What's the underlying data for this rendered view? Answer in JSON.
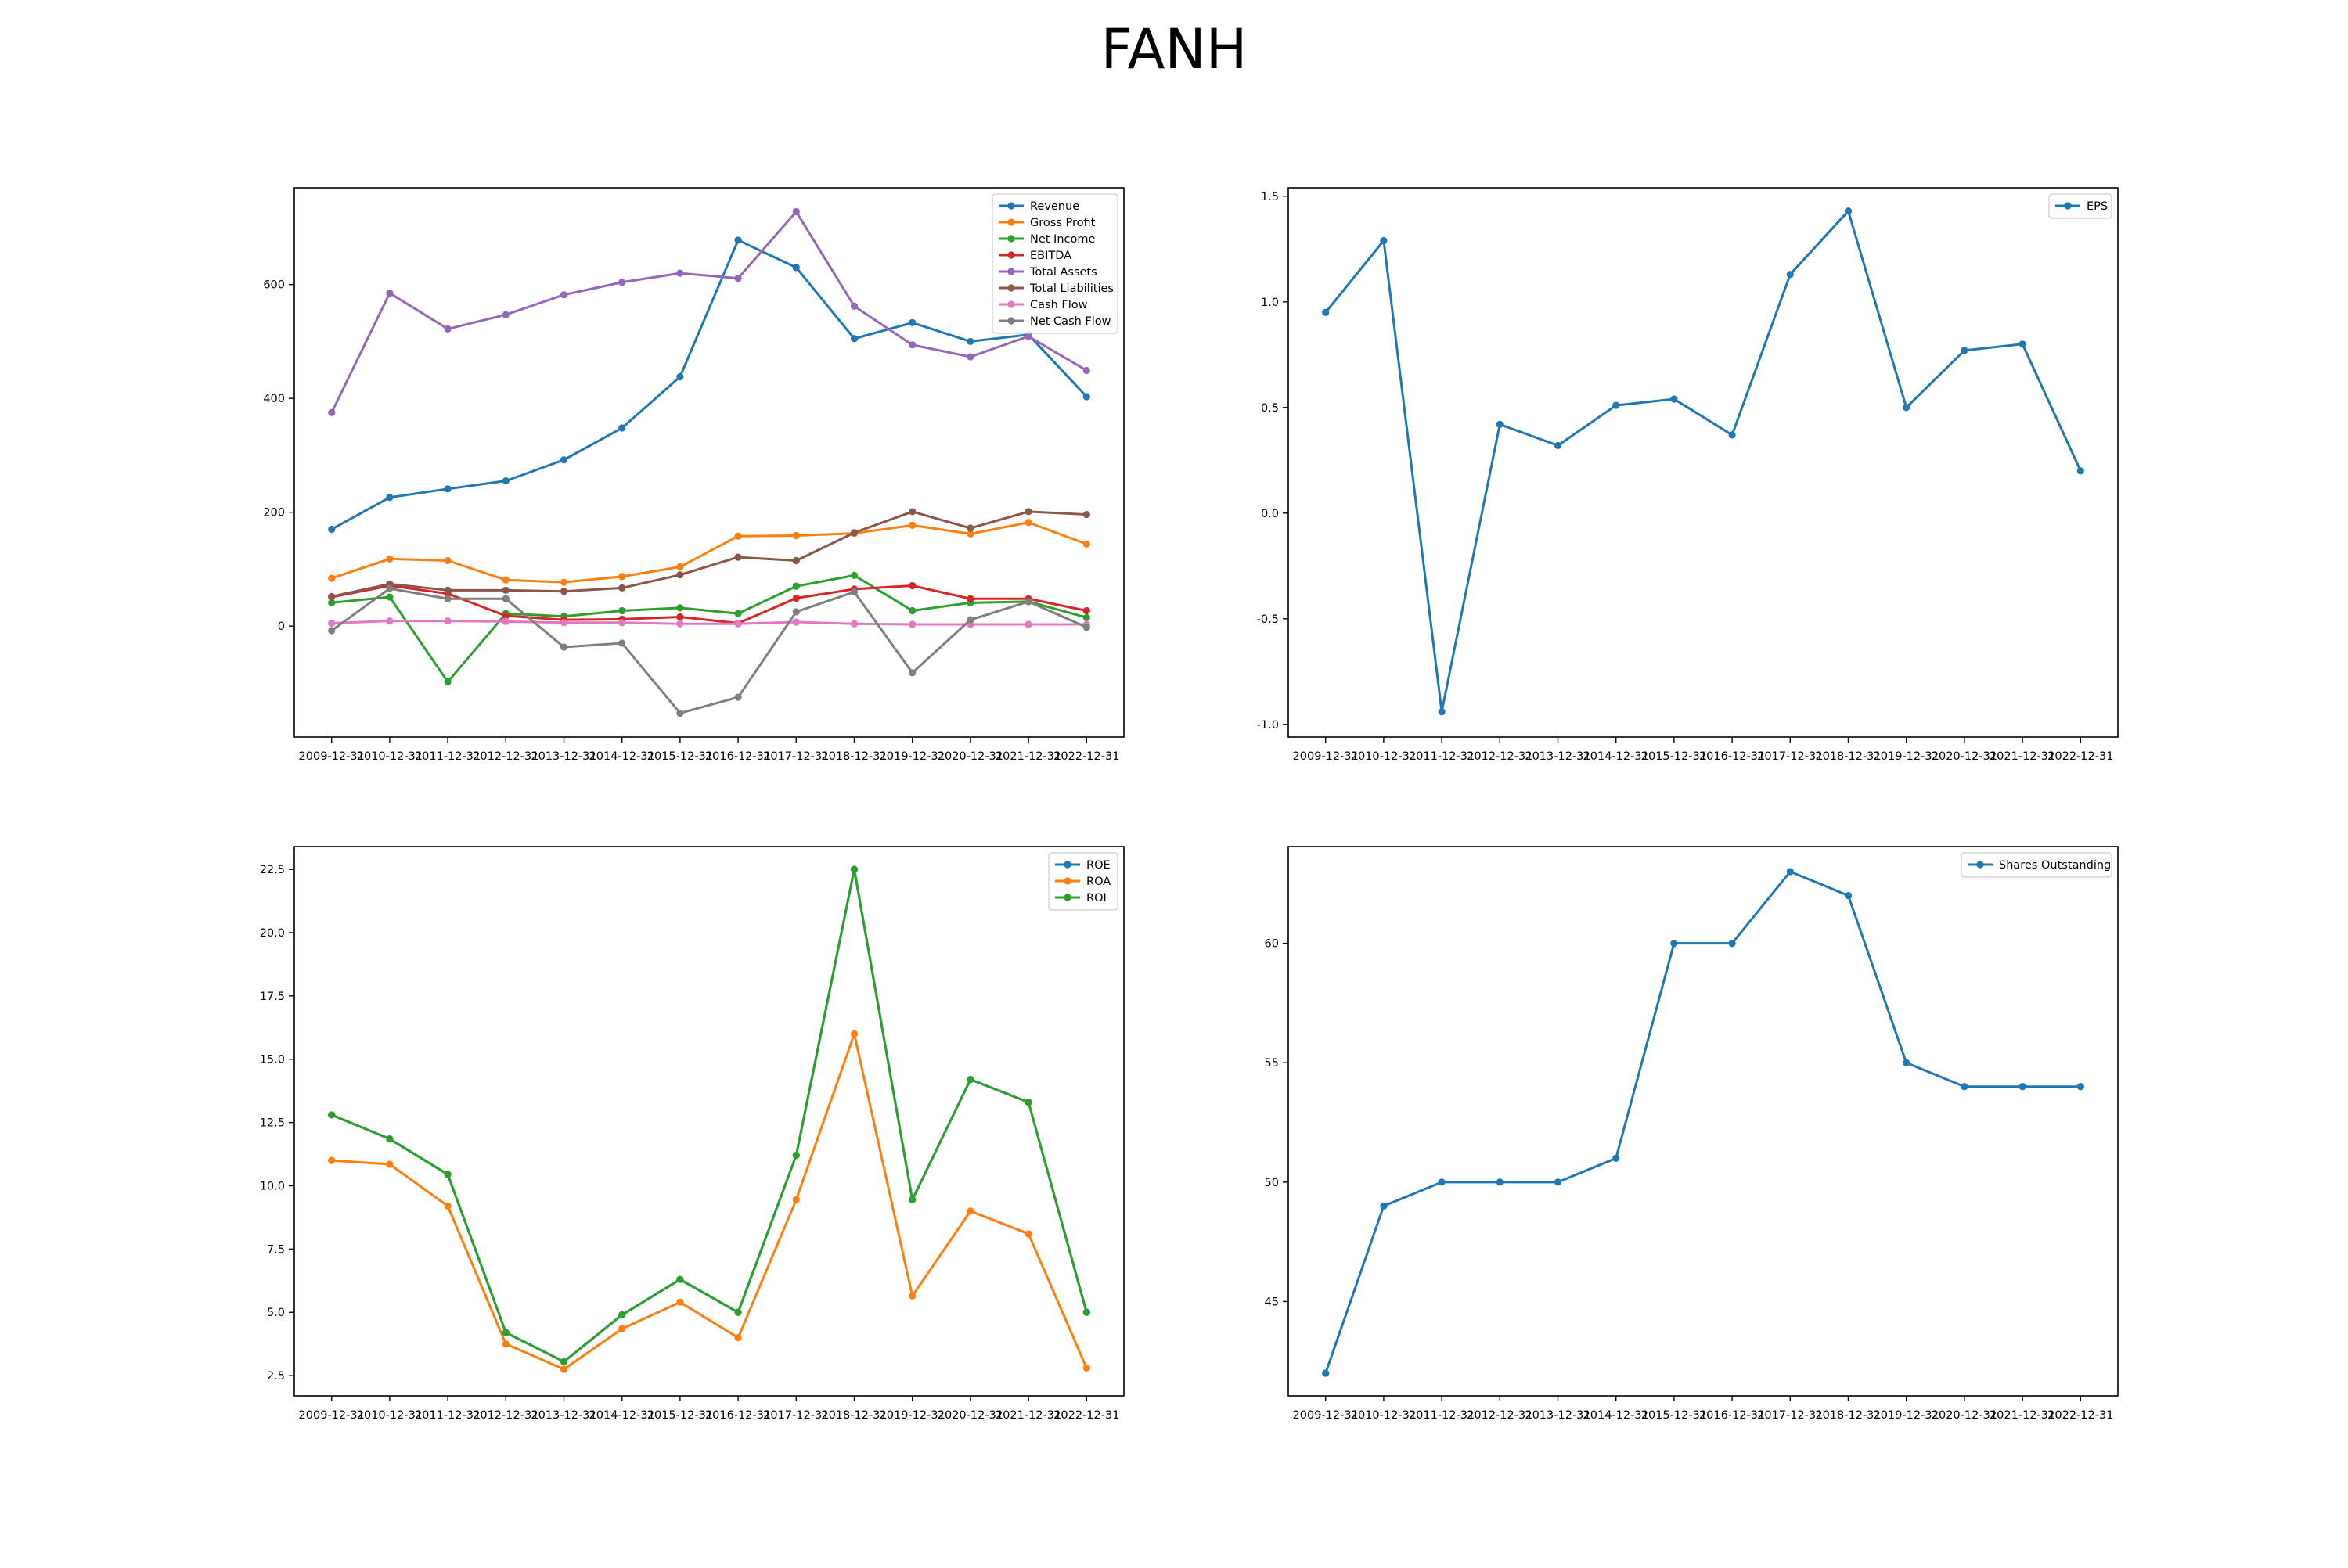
{
  "title": "FANH",
  "chart_data": [
    {
      "type": "line",
      "x": [
        "2009-12-31",
        "2010-12-31",
        "2011-12-31",
        "2012-12-31",
        "2013-12-31",
        "2014-12-31",
        "2015-12-31",
        "2016-12-31",
        "2017-12-31",
        "2018-12-31",
        "2019-12-31",
        "2020-12-31",
        "2021-12-31",
        "2022-12-31"
      ],
      "yticks": [
        0,
        200,
        400,
        600
      ],
      "ylim": [
        -195,
        770
      ],
      "legend": "top-right",
      "grid": false,
      "series": [
        {
          "name": "Revenue",
          "color": "#1f77b4",
          "values": [
            170,
            226,
            241,
            255,
            292,
            348,
            438,
            678,
            630,
            505,
            533,
            500,
            512,
            403
          ]
        },
        {
          "name": "Gross Profit",
          "color": "#ff7f0e",
          "values": [
            84,
            118,
            115,
            81,
            77,
            87,
            104,
            158,
            159,
            163,
            177,
            162,
            182,
            144
          ]
        },
        {
          "name": "Net Income",
          "color": "#2ca02c",
          "values": [
            41,
            51,
            -98,
            22,
            17,
            27,
            32,
            22,
            70,
            89,
            27,
            41,
            43,
            15
          ]
        },
        {
          "name": "EBITDA",
          "color": "#d62728",
          "values": [
            51,
            71,
            57,
            18,
            11,
            12,
            16,
            5,
            49,
            65,
            71,
            48,
            48,
            27
          ]
        },
        {
          "name": "Total Assets",
          "color": "#9467bd",
          "values": [
            375,
            585,
            522,
            547,
            582,
            604,
            620,
            611,
            728,
            562,
            494,
            473,
            509,
            449
          ]
        },
        {
          "name": "Total Liabilities",
          "color": "#8c564b",
          "values": [
            52,
            74,
            63,
            63,
            61,
            67,
            90,
            121,
            115,
            164,
            201,
            172,
            201,
            196
          ]
        },
        {
          "name": "Cash Flow",
          "color": "#e377c2",
          "values": [
            5,
            9,
            9,
            8,
            6,
            6,
            4,
            4,
            7,
            4,
            3,
            3,
            3,
            3
          ]
        },
        {
          "name": "Net Cash Flow",
          "color": "#7f7f7f",
          "values": [
            -8,
            66,
            48,
            48,
            -37,
            -30,
            -153,
            -125,
            25,
            60,
            -82,
            11,
            43,
            -2
          ]
        }
      ]
    },
    {
      "type": "line",
      "x": [
        "2009-12-31",
        "2010-12-31",
        "2011-12-31",
        "2012-12-31",
        "2013-12-31",
        "2014-12-31",
        "2015-12-31",
        "2016-12-31",
        "2017-12-31",
        "2018-12-31",
        "2019-12-31",
        "2020-12-31",
        "2021-12-31",
        "2022-12-31"
      ],
      "yticks": [
        -1.0,
        -0.5,
        0.0,
        0.5,
        1.0,
        1.5
      ],
      "ylim": [
        -1.06,
        1.54
      ],
      "legend": "top-right",
      "grid": false,
      "series": [
        {
          "name": "EPS",
          "color": "#1f77b4",
          "values": [
            0.95,
            1.29,
            -0.94,
            0.42,
            0.32,
            0.51,
            0.54,
            0.37,
            1.13,
            1.43,
            0.5,
            0.77,
            0.8,
            0.2
          ]
        }
      ]
    },
    {
      "type": "line",
      "x": [
        "2009-12-31",
        "2010-12-31",
        "2011-12-31",
        "2012-12-31",
        "2013-12-31",
        "2014-12-31",
        "2015-12-31",
        "2016-12-31",
        "2017-12-31",
        "2018-12-31",
        "2019-12-31",
        "2020-12-31",
        "2021-12-31",
        "2022-12-31"
      ],
      "yticks": [
        2.5,
        5.0,
        7.5,
        10.0,
        12.5,
        15.0,
        17.5,
        20.0,
        22.5
      ],
      "ylim": [
        1.7,
        23.4
      ],
      "legend": "top-right",
      "grid": false,
      "series": [
        {
          "name": "ROE",
          "color": "#1f77b4",
          "values": [
            12.8,
            11.85,
            10.45,
            4.2,
            3.05,
            4.9,
            6.3,
            5.0,
            11.2,
            22.5,
            9.45,
            14.2,
            13.3,
            5.0
          ]
        },
        {
          "name": "ROA",
          "color": "#ff7f0e",
          "values": [
            11.0,
            10.85,
            9.2,
            3.75,
            2.75,
            4.35,
            5.4,
            4.0,
            9.45,
            16.0,
            5.65,
            9.0,
            8.1,
            2.8
          ]
        },
        {
          "name": "ROI",
          "color": "#2ca02c",
          "values": [
            12.8,
            11.85,
            10.45,
            4.2,
            3.05,
            4.9,
            6.3,
            5.0,
            11.2,
            22.5,
            9.45,
            14.2,
            13.3,
            5.0
          ]
        }
      ]
    },
    {
      "type": "line",
      "x": [
        "2009-12-31",
        "2010-12-31",
        "2011-12-31",
        "2012-12-31",
        "2013-12-31",
        "2014-12-31",
        "2015-12-31",
        "2016-12-31",
        "2017-12-31",
        "2018-12-31",
        "2019-12-31",
        "2020-12-31",
        "2021-12-31",
        "2022-12-31"
      ],
      "yticks": [
        45,
        50,
        55,
        60
      ],
      "ylim": [
        41.05,
        64.05
      ],
      "legend": "top-right",
      "grid": false,
      "series": [
        {
          "name": "Shares Outstanding",
          "color": "#1f77b4",
          "values": [
            42,
            49,
            50,
            50,
            50,
            51,
            60,
            60,
            63,
            62,
            55,
            54,
            54,
            54
          ]
        }
      ]
    }
  ]
}
